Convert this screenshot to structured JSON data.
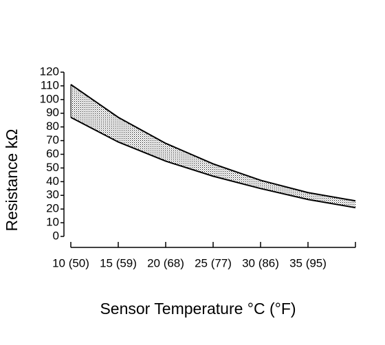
{
  "chart_data": {
    "type": "band",
    "x_label": "Sensor Temperature °C (°F)",
    "y_label": "Resistance kΩ",
    "x": [
      10,
      15,
      20,
      25,
      30,
      35,
      40
    ],
    "series": [
      {
        "color": "#000000",
        "values": [
          111,
          87,
          68,
          53,
          41,
          32,
          26
        ]
      },
      {
        "color": "#000000",
        "values": [
          87,
          69,
          55,
          44,
          35,
          27,
          21
        ]
      }
    ],
    "xlim": [
      10,
      40
    ],
    "xticks": [
      {
        "value": 10,
        "label": "10 (50)"
      },
      {
        "value": 15,
        "label": "15 (59)"
      },
      {
        "value": 20,
        "label": "20 (68)"
      },
      {
        "value": 25,
        "label": "25 (77)"
      },
      {
        "value": 30,
        "label": "30 (86)"
      },
      {
        "value": 35,
        "label": "35 (95)"
      }
    ],
    "ylim": [
      0,
      120
    ],
    "yticks": [
      0,
      10,
      20,
      30,
      40,
      50,
      60,
      70,
      80,
      90,
      100,
      110,
      120
    ]
  }
}
